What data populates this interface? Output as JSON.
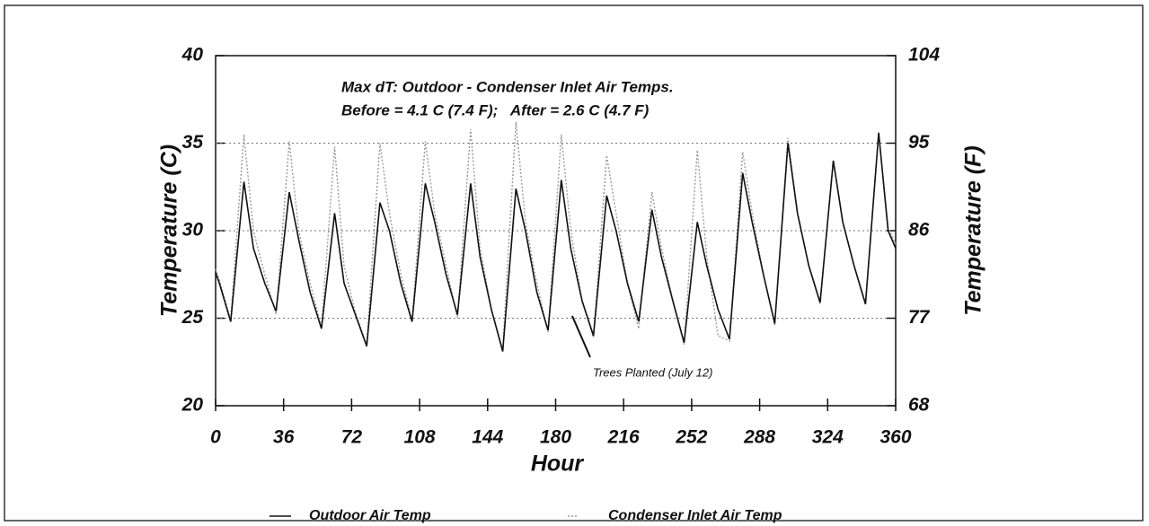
{
  "chart_data": {
    "type": "line",
    "annotations": [
      "Max dT: Outdoor - Condenser Inlet Air Temps.",
      "Before = 4.1 C (7.4 F);   After = 2.6 C (4.7 F)",
      "Trees Planted (July 12)"
    ],
    "xlabel": "Hour",
    "ylabel": "Temperature (C)",
    "y2label": "Temperature (F)",
    "x": [
      0,
      2,
      8,
      15,
      20,
      26,
      32,
      39,
      44,
      50,
      56,
      63,
      68,
      74,
      80,
      87,
      92,
      98,
      104,
      111,
      116,
      122,
      128,
      135,
      140,
      146,
      152,
      159,
      164,
      170,
      176,
      183,
      188,
      194,
      200,
      207,
      212,
      218,
      224,
      231,
      236,
      242,
      248,
      255,
      260,
      266,
      272,
      279,
      284,
      290,
      296,
      303,
      308,
      314,
      320,
      327,
      332,
      338,
      344,
      351,
      356,
      360
    ],
    "series": [
      {
        "name": "Outdoor Air Temp",
        "color": "#111111",
        "values": [
          27.6,
          27.0,
          24.8,
          32.8,
          29.0,
          27.0,
          25.4,
          32.2,
          29.5,
          26.5,
          24.4,
          31.0,
          27.0,
          25.2,
          23.4,
          31.6,
          30.0,
          27.0,
          24.8,
          32.7,
          30.5,
          27.5,
          25.2,
          32.7,
          28.5,
          25.5,
          23.1,
          32.4,
          30.0,
          26.5,
          24.3,
          32.9,
          29.0,
          26.0,
          24.0,
          32.0,
          30.0,
          27.0,
          24.8,
          31.2,
          28.5,
          26.0,
          23.6,
          30.5,
          28.0,
          25.5,
          23.8,
          33.3,
          30.5,
          27.5,
          24.7,
          35.0,
          31.0,
          28.0,
          25.9,
          34.0,
          30.5,
          28.0,
          25.8,
          35.6,
          30.0,
          29.0
        ]
      },
      {
        "name": "Condenser Inlet Air Temp",
        "color": "#9a9a9a",
        "values": [
          27.8,
          27.2,
          24.9,
          35.5,
          30.0,
          27.5,
          25.2,
          35.1,
          30.0,
          27.0,
          24.5,
          34.8,
          28.0,
          25.3,
          23.5,
          35.0,
          31.0,
          27.5,
          24.9,
          35.1,
          31.0,
          28.0,
          25.0,
          35.8,
          29.0,
          25.5,
          23.2,
          36.2,
          30.5,
          27.0,
          24.2,
          35.5,
          30.0,
          26.0,
          23.9,
          34.3,
          31.0,
          27.0,
          24.4,
          32.2,
          29.0,
          26.0,
          23.5,
          34.6,
          28.5,
          24.0,
          23.7,
          34.5,
          31.0,
          27.5,
          24.6,
          35.3,
          31.0,
          28.0,
          25.8,
          34.0,
          30.5,
          28.0,
          25.9,
          35.5,
          30.2,
          29.2
        ]
      }
    ],
    "xlim": [
      0,
      360
    ],
    "xticks": [
      0,
      36,
      72,
      108,
      144,
      180,
      216,
      252,
      288,
      324,
      360
    ],
    "ylim": [
      20,
      40
    ],
    "yticks": [
      20,
      25,
      30,
      35,
      40
    ],
    "y2lim": [
      68,
      104
    ],
    "y2ticks": [
      68,
      77,
      86,
      95,
      104
    ],
    "grid": true,
    "legend": "bottom"
  }
}
